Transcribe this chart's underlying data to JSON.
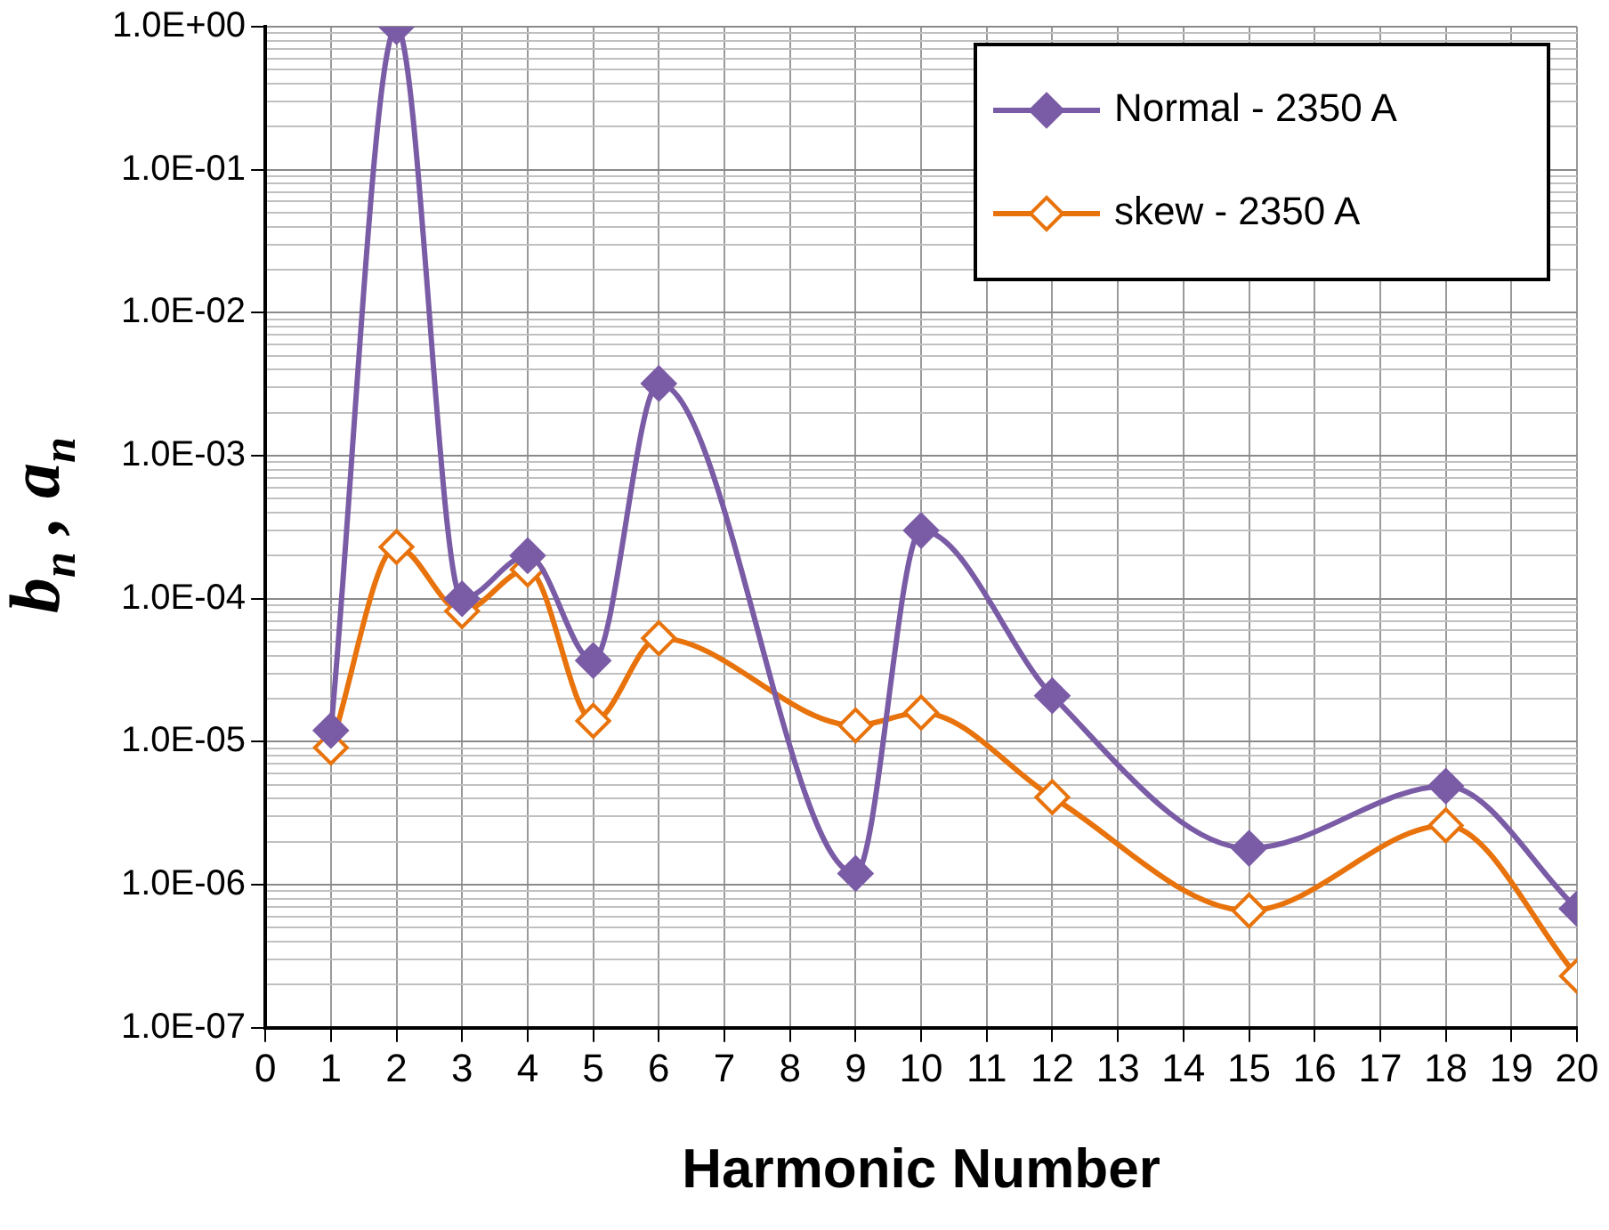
{
  "chart_data": {
    "type": "line",
    "xlabel": "Harmonic Number",
    "ylabel": "b$_{n}$ , a$_{n}$",
    "log": "y",
    "grid": true,
    "legend": "top right",
    "marker": "diamond",
    "line_style": "solid",
    "xlim": [
      0,
      20
    ],
    "xticks": [
      0,
      1,
      2,
      3,
      4,
      5,
      6,
      7,
      8,
      9,
      10,
      11,
      12,
      13,
      14,
      15,
      16,
      17,
      18,
      19,
      20
    ],
    "ylim": [
      1e-07,
      1
    ],
    "yticks": [
      {
        "value": 1e-07,
        "label": "1.0E-07"
      },
      {
        "value": 2e-07,
        "label": null
      },
      {
        "value": 3e-07,
        "label": null
      },
      {
        "value": 4e-07,
        "label": null
      },
      {
        "value": 5e-07,
        "label": null
      },
      {
        "value": 6e-07,
        "label": null
      },
      {
        "value": 7e-07,
        "label": null
      },
      {
        "value": 8e-07,
        "label": null
      },
      {
        "value": 9e-07,
        "label": null
      },
      {
        "value": 1e-06,
        "label": "1.0E-06"
      },
      {
        "value": 2e-06,
        "label": null
      },
      {
        "value": 3e-06,
        "label": null
      },
      {
        "value": 4e-06,
        "label": null
      },
      {
        "value": 5e-06,
        "label": null
      },
      {
        "value": 6e-06,
        "label": null
      },
      {
        "value": 7e-06,
        "label": null
      },
      {
        "value": 8e-06,
        "label": null
      },
      {
        "value": 9e-06,
        "label": null
      },
      {
        "value": 1e-05,
        "label": "1.0E-05"
      },
      {
        "value": 2e-05,
        "label": null
      },
      {
        "value": 3e-05,
        "label": null
      },
      {
        "value": 4e-05,
        "label": null
      },
      {
        "value": 5e-05,
        "label": null
      },
      {
        "value": 6e-05,
        "label": null
      },
      {
        "value": 7e-05,
        "label": null
      },
      {
        "value": 8e-05,
        "label": null
      },
      {
        "value": 9e-05,
        "label": null
      },
      {
        "value": 0.0001,
        "label": "1.0E-04"
      },
      {
        "value": 0.0002,
        "label": null
      },
      {
        "value": 0.0003,
        "label": null
      },
      {
        "value": 0.0004,
        "label": null
      },
      {
        "value": 0.0005,
        "label": null
      },
      {
        "value": 0.0006,
        "label": null
      },
      {
        "value": 0.0007,
        "label": null
      },
      {
        "value": 0.0008,
        "label": null
      },
      {
        "value": 0.0009,
        "label": null
      },
      {
        "value": 0.001,
        "label": "1.0E-03"
      },
      {
        "value": 0.002,
        "label": null
      },
      {
        "value": 0.003,
        "label": null
      },
      {
        "value": 0.004,
        "label": null
      },
      {
        "value": 0.005,
        "label": null
      },
      {
        "value": 0.006,
        "label": null
      },
      {
        "value": 0.007,
        "label": null
      },
      {
        "value": 0.008,
        "label": null
      },
      {
        "value": 0.009,
        "label": null
      },
      {
        "value": 0.01,
        "label": "1.0E-02"
      },
      {
        "value": 0.02,
        "label": null
      },
      {
        "value": 0.03,
        "label": null
      },
      {
        "value": 0.04,
        "label": null
      },
      {
        "value": 0.05,
        "label": null
      },
      {
        "value": 0.06,
        "label": null
      },
      {
        "value": 0.07,
        "label": null
      },
      {
        "value": 0.08,
        "label": null
      },
      {
        "value": 0.09,
        "label": null
      },
      {
        "value": 0.1,
        "label": "1.0E-01"
      },
      {
        "value": 0.2,
        "label": null
      },
      {
        "value": 0.3,
        "label": null
      },
      {
        "value": 0.4,
        "label": null
      },
      {
        "value": 0.5,
        "label": null
      },
      {
        "value": 0.6,
        "label": null
      },
      {
        "value": 0.7,
        "label": null
      },
      {
        "value": 0.8,
        "label": null
      },
      {
        "value": 0.9,
        "label": null
      },
      {
        "value": 1,
        "label": "1.0E+00"
      }
    ],
    "x": [
      1,
      2,
      3,
      4,
      5,
      6,
      9,
      10,
      12,
      15,
      18,
      20
    ],
    "series": [
      {
        "name": "Normal - 2350 A",
        "color": "#7a5ba5",
        "values": [
          1.2e-05,
          1,
          0.0001,
          0.0002,
          3.7e-05,
          0.0032,
          1.2e-06,
          0.0003,
          2.1e-05,
          1.8e-06,
          4.9e-06,
          6.8e-07
        ]
      },
      {
        "name": "skew - 2350 A",
        "color": "#e8730c",
        "values": [
          9.1e-06,
          0.00023,
          8.2e-05,
          0.00016,
          1.4e-05,
          5.3e-05,
          1.3e-05,
          1.6e-05,
          4.1e-06,
          6.6e-07,
          2.6e-06,
          2.3e-07
        ]
      }
    ]
  }
}
